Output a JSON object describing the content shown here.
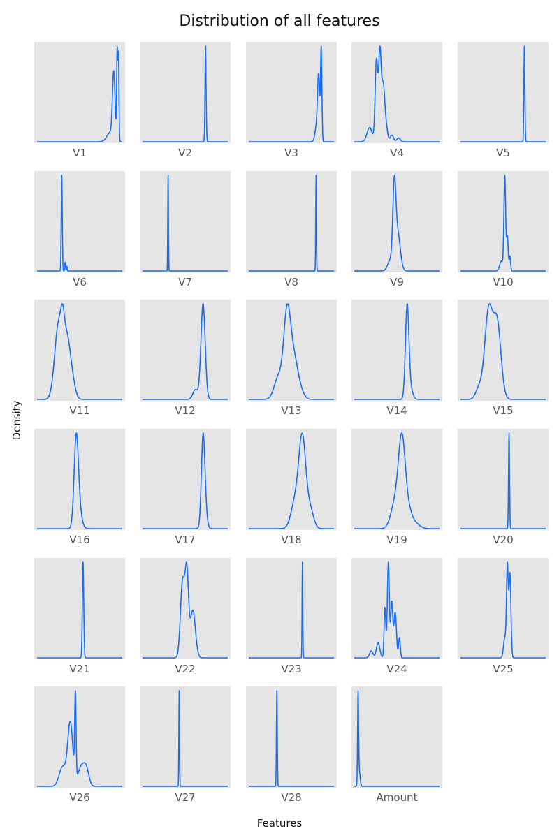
{
  "title": "Distribution of all features",
  "xlabel": "Features",
  "ylabel": "Density",
  "colors": {
    "line": "#1a6ef5",
    "panel_bg": "#e5e5e5",
    "baseline": "#1a6ef5"
  },
  "chart_data": {
    "type": "line",
    "title": "Distribution of all features",
    "xlabel": "Features",
    "ylabel": "Density",
    "grid": false,
    "layout": {
      "rows": 6,
      "cols": 5
    },
    "x_range": [
      0,
      1
    ],
    "panels": [
      {
        "name": "V1",
        "peaks": [
          [
            0.9,
            0.015,
            0.7
          ],
          [
            0.94,
            0.006,
            0.95
          ],
          [
            0.955,
            0.006,
            0.92
          ],
          [
            0.86,
            0.04,
            0.1
          ]
        ]
      },
      {
        "name": "V2",
        "peaks": [
          [
            0.74,
            0.007,
            1.0
          ],
          [
            0.738,
            0.004,
            0.5
          ]
        ]
      },
      {
        "name": "V3",
        "peaks": [
          [
            0.85,
            0.008,
            0.8
          ],
          [
            0.82,
            0.012,
            0.5
          ],
          [
            0.8,
            0.02,
            0.15
          ]
        ]
      },
      {
        "name": "V4",
        "peaks": [
          [
            0.26,
            0.015,
            0.85
          ],
          [
            0.3,
            0.015,
            0.9
          ],
          [
            0.34,
            0.02,
            0.6
          ],
          [
            0.18,
            0.03,
            0.15
          ],
          [
            0.38,
            0.015,
            0.1
          ],
          [
            0.44,
            0.02,
            0.07
          ],
          [
            0.52,
            0.02,
            0.04
          ]
        ]
      },
      {
        "name": "V5",
        "peaks": [
          [
            0.75,
            0.006,
            1.0
          ]
        ]
      },
      {
        "name": "V6",
        "peaks": [
          [
            0.29,
            0.006,
            1.0
          ],
          [
            0.33,
            0.005,
            0.09
          ],
          [
            0.35,
            0.004,
            0.05
          ]
        ]
      },
      {
        "name": "V7",
        "peaks": [
          [
            0.3,
            0.004,
            1.0
          ]
        ]
      },
      {
        "name": "V8",
        "peaks": [
          [
            0.79,
            0.004,
            1.0
          ]
        ]
      },
      {
        "name": "V9",
        "peaks": [
          [
            0.47,
            0.018,
            0.92
          ],
          [
            0.51,
            0.03,
            0.45
          ],
          [
            0.42,
            0.03,
            0.12
          ]
        ]
      },
      {
        "name": "V10",
        "peaks": [
          [
            0.52,
            0.01,
            0.95
          ],
          [
            0.55,
            0.01,
            0.35
          ],
          [
            0.58,
            0.008,
            0.15
          ],
          [
            0.48,
            0.02,
            0.1
          ]
        ]
      },
      {
        "name": "V11",
        "peaks": [
          [
            0.25,
            0.045,
            0.85
          ],
          [
            0.35,
            0.05,
            0.75
          ],
          [
            0.3,
            0.02,
            0.25
          ],
          [
            0.43,
            0.03,
            0.05
          ]
        ]
      },
      {
        "name": "V12",
        "peaks": [
          [
            0.71,
            0.025,
            0.98
          ],
          [
            0.62,
            0.03,
            0.1
          ]
        ]
      },
      {
        "name": "V13",
        "peaks": [
          [
            0.45,
            0.04,
            0.9
          ],
          [
            0.53,
            0.05,
            0.45
          ],
          [
            0.35,
            0.05,
            0.25
          ],
          [
            0.62,
            0.04,
            0.05
          ]
        ]
      },
      {
        "name": "V14",
        "peaks": [
          [
            0.62,
            0.02,
            0.97
          ],
          [
            0.65,
            0.03,
            0.15
          ]
        ]
      },
      {
        "name": "V15",
        "peaks": [
          [
            0.33,
            0.045,
            0.75
          ],
          [
            0.43,
            0.045,
            0.65
          ],
          [
            0.22,
            0.04,
            0.1
          ]
        ]
      },
      {
        "name": "V16",
        "peaks": [
          [
            0.46,
            0.025,
            0.97
          ],
          [
            0.5,
            0.03,
            0.15
          ]
        ]
      },
      {
        "name": "V17",
        "peaks": [
          [
            0.71,
            0.02,
            0.97
          ],
          [
            0.74,
            0.02,
            0.15
          ]
        ]
      },
      {
        "name": "V18",
        "peaks": [
          [
            0.63,
            0.04,
            0.9
          ],
          [
            0.55,
            0.05,
            0.3
          ],
          [
            0.72,
            0.04,
            0.2
          ]
        ]
      },
      {
        "name": "V19",
        "peaks": [
          [
            0.56,
            0.04,
            0.85
          ],
          [
            0.48,
            0.05,
            0.25
          ],
          [
            0.64,
            0.04,
            0.15
          ],
          [
            0.72,
            0.05,
            0.05
          ]
        ]
      },
      {
        "name": "V20",
        "peaks": [
          [
            0.57,
            0.006,
            1.0
          ]
        ]
      },
      {
        "name": "V21",
        "peaks": [
          [
            0.54,
            0.008,
            1.0
          ]
        ]
      },
      {
        "name": "V22",
        "peaks": [
          [
            0.47,
            0.025,
            0.8
          ],
          [
            0.52,
            0.02,
            0.85
          ],
          [
            0.59,
            0.03,
            0.5
          ]
        ]
      },
      {
        "name": "V23",
        "peaks": [
          [
            0.63,
            0.004,
            1.0
          ]
        ]
      },
      {
        "name": "V24",
        "peaks": [
          [
            0.4,
            0.012,
            0.95
          ],
          [
            0.36,
            0.01,
            0.5
          ],
          [
            0.44,
            0.012,
            0.55
          ],
          [
            0.48,
            0.015,
            0.45
          ],
          [
            0.53,
            0.01,
            0.2
          ],
          [
            0.28,
            0.02,
            0.15
          ],
          [
            0.2,
            0.02,
            0.07
          ]
        ]
      },
      {
        "name": "V25",
        "peaks": [
          [
            0.55,
            0.01,
            0.9
          ],
          [
            0.58,
            0.012,
            0.85
          ],
          [
            0.52,
            0.015,
            0.2
          ]
        ]
      },
      {
        "name": "V26",
        "peaks": [
          [
            0.39,
            0.03,
            0.65
          ],
          [
            0.45,
            0.008,
            0.85
          ],
          [
            0.3,
            0.04,
            0.2
          ],
          [
            0.52,
            0.04,
            0.2
          ],
          [
            0.58,
            0.03,
            0.15
          ]
        ]
      },
      {
        "name": "V27",
        "peaks": [
          [
            0.43,
            0.004,
            1.0
          ]
        ]
      },
      {
        "name": "V28",
        "peaks": [
          [
            0.33,
            0.005,
            1.0
          ]
        ]
      },
      {
        "name": "Amount",
        "peaks": [
          [
            0.045,
            0.006,
            1.0
          ],
          [
            0.06,
            0.01,
            0.15
          ]
        ]
      }
    ]
  }
}
